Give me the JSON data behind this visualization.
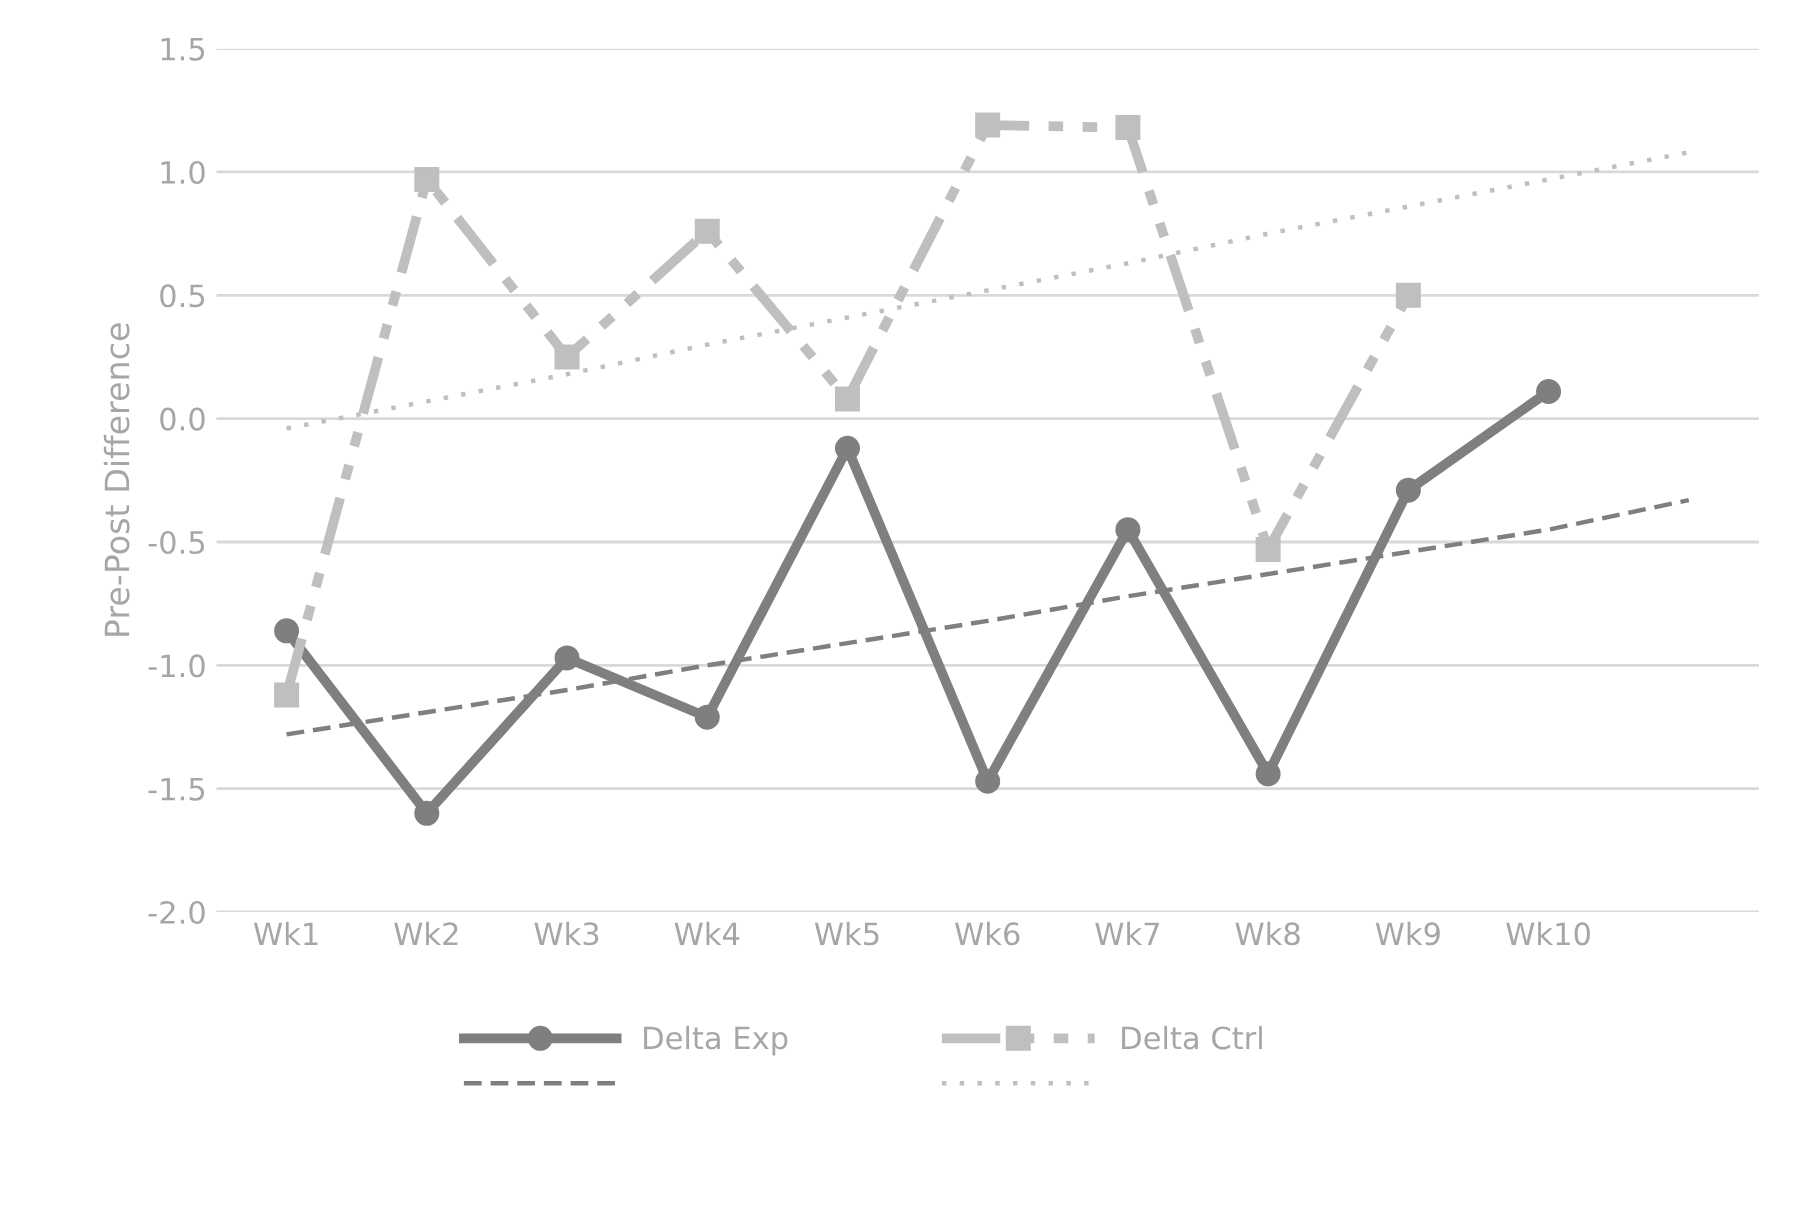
{
  "chart_data": {
    "type": "line",
    "ylabel": "Pre-Post Difference",
    "categories": [
      "Wk1",
      "Wk2",
      "Wk3",
      "Wk4",
      "Wk5",
      "Wk6",
      "Wk7",
      "Wk8",
      "Wk9",
      "Wk10",
      null
    ],
    "series": [
      {
        "name": "Delta Exp",
        "color": "#7f7f7f",
        "marker": "circle",
        "line_style": "solid",
        "values": [
          -0.86,
          -1.6,
          -0.97,
          -1.21,
          -0.12,
          -1.47,
          -0.45,
          -1.44,
          -0.29,
          0.11,
          null
        ]
      },
      {
        "name": "Delta Ctrl",
        "color": "#bfbfbf",
        "marker": "square",
        "line_style": "dashdot",
        "values": [
          -1.12,
          0.97,
          0.25,
          0.76,
          0.08,
          1.19,
          1.18,
          -0.53,
          0.5,
          null,
          null
        ]
      },
      {
        "color": "#7f7f7f",
        "marker": "none",
        "line_style": "dashed",
        "values": [
          -1.28,
          -1.19,
          -1.1,
          -1.0,
          -0.91,
          -0.82,
          -0.72,
          -0.63,
          -0.54,
          -0.45,
          -0.33
        ]
      },
      {
        "color": "#bfbfbf",
        "marker": "none",
        "line_style": "dotted",
        "values": [
          -0.04,
          0.07,
          0.18,
          0.3,
          0.41,
          0.52,
          0.63,
          0.75,
          0.86,
          0.97,
          1.08
        ]
      }
    ],
    "ylim": [
      -2.0,
      1.5
    ],
    "yticks": [
      {
        "value": -2.0,
        "label": "-2.0"
      },
      {
        "value": -1.5,
        "label": "-1.5"
      },
      {
        "value": -1.0,
        "label": "-1.0"
      },
      {
        "value": -0.5,
        "label": "-0.5"
      },
      {
        "value": 0.0,
        "label": "0.0"
      },
      {
        "value": 0.5,
        "label": "0.5"
      },
      {
        "value": 1.0,
        "label": "1.0"
      },
      {
        "value": 1.5,
        "label": "1.5"
      }
    ],
    "grid": "y",
    "legend": "bottom"
  }
}
